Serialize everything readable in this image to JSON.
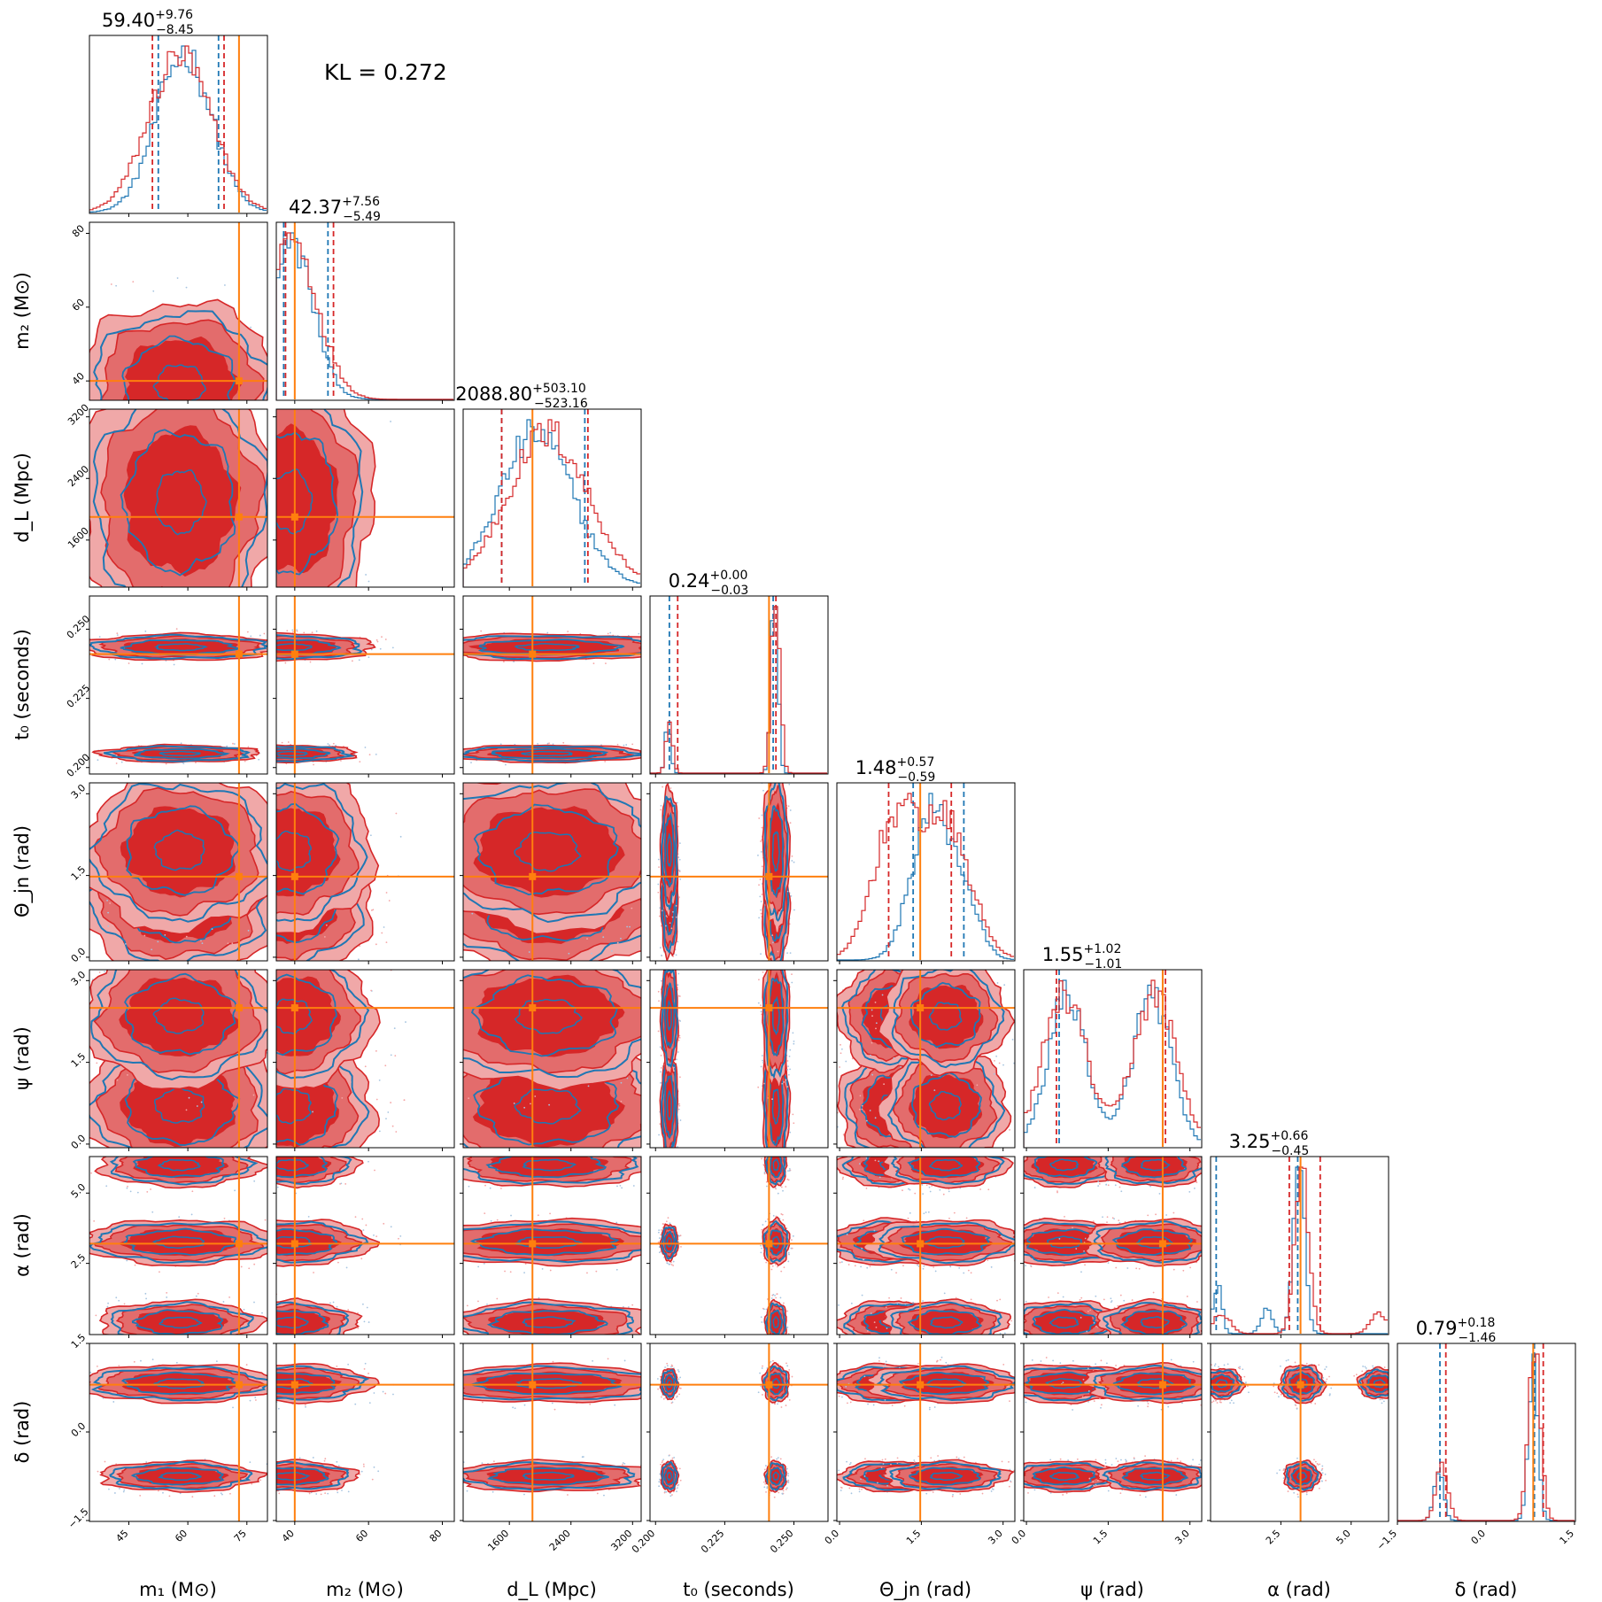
{
  "chart_data": {
    "type": "corner",
    "annotation": "KL = 0.272",
    "colors": {
      "posterior_a": "#d62728",
      "posterior_b": "#1f77b4",
      "injection": "#ff7f0e"
    },
    "parameters": [
      {
        "key": "m1",
        "label": "m₁ (M⊙)",
        "range": [
          35,
          80
        ],
        "ticks": [
          45,
          60,
          75
        ],
        "injection": 73,
        "title": {
          "median": "59.40",
          "plus": "+9.76",
          "minus": "−8.45"
        },
        "quantiles_red": [
          51.0,
          69.2
        ],
        "quantiles_blue": [
          52.5,
          67.8
        ],
        "dist_red": [
          {
            "m": 58,
            "s": 8
          }
        ],
        "dist_blue": [
          {
            "m": 59,
            "s": 7
          }
        ]
      },
      {
        "key": "m2",
        "label": "m₂ (M⊙)",
        "range": [
          35,
          83
        ],
        "ticks": [
          40,
          60,
          80
        ],
        "injection": 40,
        "title": {
          "median": "42.37",
          "plus": "+7.56",
          "minus": "−5.49"
        },
        "quantiles_red": [
          37.5,
          50.5
        ],
        "quantiles_blue": [
          37.0,
          49.0
        ],
        "dist_red": [
          {
            "m": 39,
            "s": 7
          }
        ],
        "dist_blue": [
          {
            "m": 39,
            "s": 6
          }
        ]
      },
      {
        "key": "dL",
        "label": "d_L (Mpc)",
        "range": [
          1000,
          3300
        ],
        "ticks": [
          1600,
          2400,
          3200
        ],
        "injection": 1900,
        "title": {
          "median": "2088.80",
          "plus": "+503.10",
          "minus": "−523.16"
        },
        "quantiles_red": [
          1500,
          2620
        ],
        "quantiles_blue": [
          1500,
          2580
        ],
        "dist_red": [
          {
            "m": 2100,
            "s": 520
          }
        ],
        "dist_blue": [
          {
            "m": 1950,
            "s": 480
          }
        ]
      },
      {
        "key": "t0",
        "label": "t₀ (seconds)",
        "range": [
          0.198,
          0.262
        ],
        "ticks": [
          0.2,
          0.225,
          0.25
        ],
        "injection": 0.241,
        "title": {
          "median": "0.24",
          "plus": "+0.00",
          "minus": "−0.03"
        },
        "quantiles_red": [
          0.208,
          0.2435
        ],
        "quantiles_blue": [
          0.205,
          0.2425
        ],
        "dist_red": [
          {
            "m": 0.2435,
            "s": 0.0015,
            "w": 0.78
          },
          {
            "m": 0.205,
            "s": 0.0012,
            "w": 0.22
          }
        ],
        "dist_blue": [
          {
            "m": 0.243,
            "s": 0.0012,
            "w": 0.78
          },
          {
            "m": 0.2045,
            "s": 0.001,
            "w": 0.22
          }
        ]
      },
      {
        "key": "thetajn",
        "label": "Θ_jn (rad)",
        "range": [
          -0.05,
          3.2
        ],
        "ticks": [
          0.0,
          1.5,
          3.0
        ],
        "injection": 1.48,
        "title": {
          "median": "1.48",
          "plus": "+0.57",
          "minus": "−0.59"
        },
        "quantiles_red": [
          0.9,
          2.05
        ],
        "quantiles_blue": [
          1.35,
          2.28
        ],
        "dist_red": [
          {
            "m": 1.0,
            "s": 0.4,
            "w": 0.5
          },
          {
            "m": 1.95,
            "s": 0.45,
            "w": 0.5
          }
        ],
        "dist_blue": [
          {
            "m": 1.65,
            "s": 0.35,
            "w": 0.7
          },
          {
            "m": 2.25,
            "s": 0.3,
            "w": 0.3
          }
        ]
      },
      {
        "key": "psi",
        "label": "ψ (rad)",
        "range": [
          -0.05,
          3.2
        ],
        "ticks": [
          0.0,
          1.5,
          3.0
        ],
        "injection": 2.5,
        "title": {
          "median": "1.55",
          "plus": "+1.02",
          "minus": "−1.01"
        },
        "quantiles_red": [
          0.55,
          2.55
        ],
        "quantiles_blue": [
          0.6,
          2.5
        ],
        "dist_red": [
          {
            "m": 0.7,
            "s": 0.4,
            "w": 0.5
          },
          {
            "m": 2.35,
            "s": 0.4,
            "w": 0.5
          }
        ],
        "dist_blue": [
          {
            "m": 0.75,
            "s": 0.35,
            "w": 0.5
          },
          {
            "m": 2.3,
            "s": 0.35,
            "w": 0.5
          }
        ]
      },
      {
        "key": "alpha",
        "label": "α (rad)",
        "range": [
          0,
          6.3
        ],
        "ticks": [
          2.5,
          5.0
        ],
        "injection": 3.2,
        "title": {
          "median": "3.25",
          "plus": "+0.66",
          "minus": "−0.45"
        },
        "quantiles_red": [
          2.8,
          3.9
        ],
        "quantiles_blue": [
          0.2,
          3.1
        ],
        "dist_red": [
          {
            "m": 3.25,
            "s": 0.25,
            "w": 0.8
          },
          {
            "m": 6.0,
            "s": 0.3,
            "w": 0.1
          },
          {
            "m": 0.4,
            "s": 0.3,
            "w": 0.1
          }
        ],
        "dist_blue": [
          {
            "m": 3.15,
            "s": 0.2,
            "w": 0.7
          },
          {
            "m": 0.25,
            "s": 0.15,
            "w": 0.2
          },
          {
            "m": 2.0,
            "s": 0.2,
            "w": 0.1
          }
        ]
      },
      {
        "key": "delta",
        "label": "δ (rad)",
        "range": [
          -1.5,
          1.5
        ],
        "ticks": [
          -1.5,
          0.0,
          1.5
        ],
        "injection": 0.8,
        "title": {
          "median": "0.79",
          "plus": "+0.18",
          "minus": "−1.46"
        },
        "quantiles_red": [
          -0.68,
          0.97
        ],
        "quantiles_blue": [
          -0.78,
          0.82
        ],
        "dist_red": [
          {
            "m": 0.82,
            "s": 0.1,
            "w": 0.75
          },
          {
            "m": -0.75,
            "s": 0.1,
            "w": 0.25
          }
        ],
        "dist_blue": [
          {
            "m": 0.8,
            "s": 0.08,
            "w": 0.75
          },
          {
            "m": -0.8,
            "s": 0.08,
            "w": 0.25
          }
        ]
      }
    ]
  }
}
